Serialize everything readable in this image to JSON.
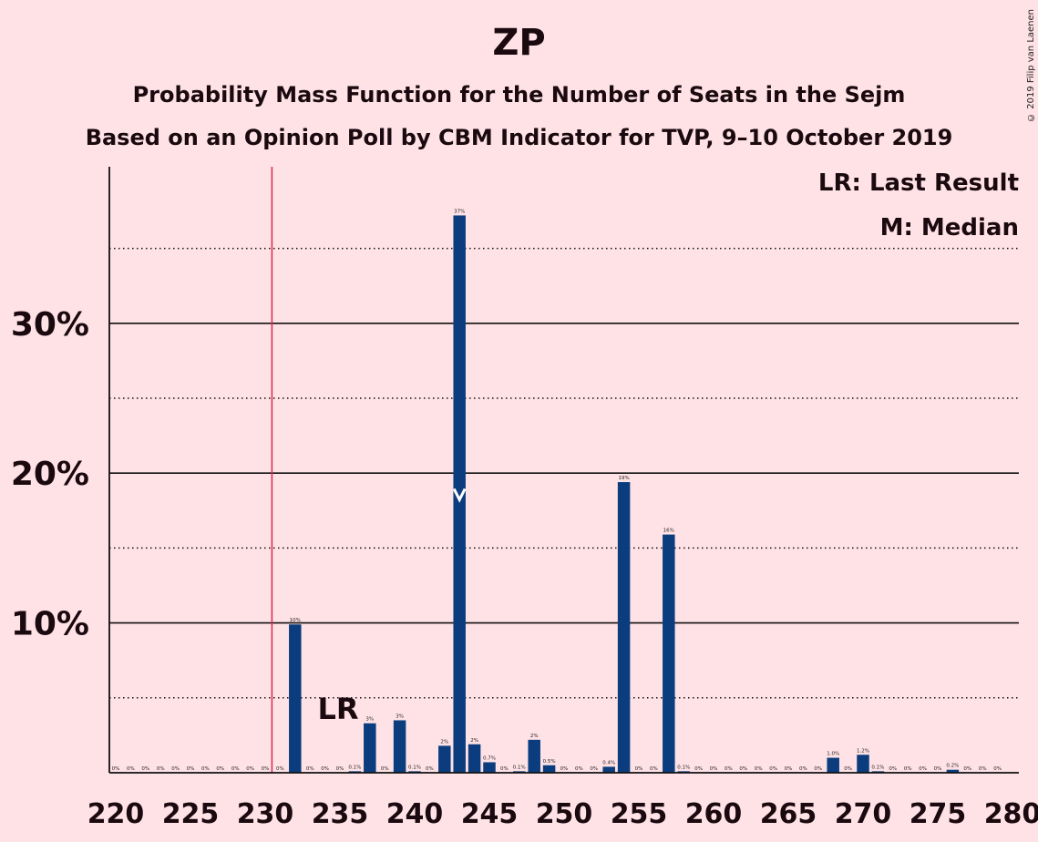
{
  "title": "ZP",
  "subtitle": "Probability Mass Function for the Number of Seats in the Sejm",
  "subtitle2": "Based on an Opinion Poll by CBM Indicator for TVP, 9–10 October 2019",
  "copyright": "© 2019 Filip van Laenen",
  "legend": {
    "lr": "LR: Last Result",
    "median": "M: Median"
  },
  "lr_marker": "LR",
  "colors": {
    "background": "#FFE2E6",
    "bar": "#0B3D7E",
    "last_result_line": "#E0264B",
    "text": "#1a0a10"
  },
  "chart_data": {
    "type": "bar",
    "xlabel": "",
    "ylabel": "",
    "xlim": [
      220,
      280
    ],
    "ylim": [
      0,
      40
    ],
    "x_ticks": [
      220,
      225,
      230,
      235,
      240,
      245,
      250,
      255,
      260,
      265,
      270,
      275,
      280
    ],
    "y_ticks": [
      {
        "value": 10,
        "label": "10%"
      },
      {
        "value": 20,
        "label": "20%"
      },
      {
        "value": 30,
        "label": "30%"
      }
    ],
    "y_minor_ticks": [
      5,
      15,
      25,
      35
    ],
    "last_result": 231,
    "last_result_label_seat": 235,
    "median": 243,
    "x": [
      220,
      221,
      222,
      223,
      224,
      225,
      226,
      227,
      228,
      229,
      230,
      231,
      232,
      233,
      234,
      235,
      236,
      237,
      238,
      239,
      240,
      241,
      242,
      243,
      244,
      245,
      246,
      247,
      248,
      249,
      250,
      251,
      252,
      253,
      254,
      255,
      256,
      257,
      258,
      259,
      260,
      261,
      262,
      263,
      264,
      265,
      266,
      267,
      268,
      269,
      270,
      271,
      272,
      273,
      274,
      275,
      276,
      277,
      278,
      279,
      280
    ],
    "values": [
      0,
      0,
      0,
      0,
      0,
      0,
      0,
      0,
      0,
      0,
      0,
      0,
      9.9,
      0,
      0,
      0,
      0.1,
      3.3,
      0,
      3.5,
      0.1,
      0,
      1.8,
      37.2,
      1.9,
      0.7,
      0,
      0.1,
      2.2,
      0.5,
      0,
      0,
      0,
      0.4,
      19.4,
      0,
      0,
      15.9,
      0.1,
      0,
      0,
      0,
      0,
      0,
      0,
      0,
      0,
      0,
      1.0,
      0,
      1.2,
      0.1,
      0,
      0,
      0,
      0,
      0.2,
      0,
      0,
      0,
      0
    ],
    "data_labels": [
      "0%",
      "0%",
      "0%",
      "0%",
      "0%",
      "0%",
      "0%",
      "0%",
      "0%",
      "0%",
      "0%",
      "0%",
      "10%",
      "0%",
      "0%",
      "0%",
      "0.1%",
      "3%",
      "0%",
      "3%",
      "0.1%",
      "0%",
      "2%",
      "37%",
      "2%",
      "0.7%",
      "0%",
      "0.1%",
      "2%",
      "0.5%",
      "0%",
      "0%",
      "0%",
      "0.4%",
      "19%",
      "0%",
      "0%",
      "16%",
      "0.1%",
      "0%",
      "0%",
      "0%",
      "0%",
      "0%",
      "0%",
      "0%",
      "0%",
      "0%",
      "1.0%",
      "0%",
      "1.2%",
      "0.1%",
      "0%",
      "0%",
      "0%",
      "0%",
      "0.2%",
      "0%",
      "0%",
      "0%",
      ""
    ]
  }
}
